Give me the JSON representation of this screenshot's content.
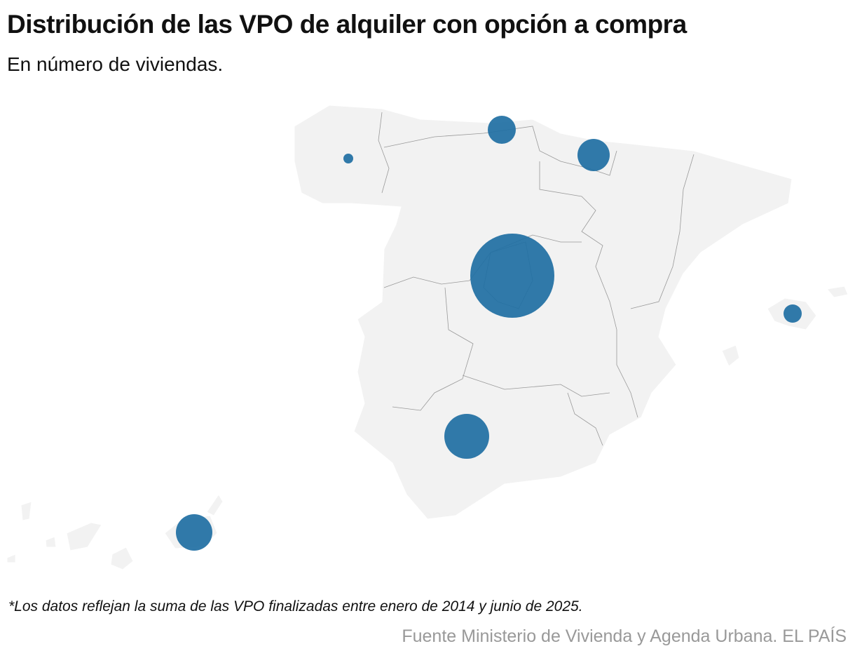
{
  "header": {
    "title": "Distribución de las VPO de alquiler con opción a compra",
    "subtitle": "En número de viviendas."
  },
  "footer": {
    "note": "*Los datos reflejan la suma de las VPO finalizadas entre enero de 2014 y junio de 2025.",
    "source": "Fuente Ministerio de Vivienda y Agenda Urbana. EL PAÍS"
  }
}
